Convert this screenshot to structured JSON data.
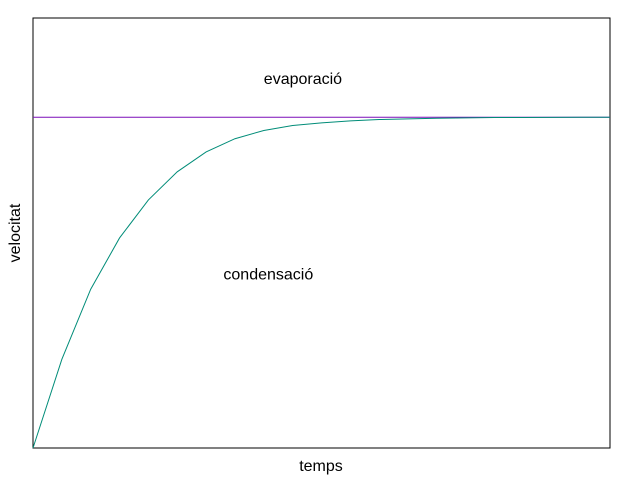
{
  "chart_data": {
    "type": "line",
    "xlabel": "temps",
    "ylabel": "velocitat",
    "xlim": [
      0,
      10
    ],
    "ylim": [
      0,
      1.3
    ],
    "grid": false,
    "series": [
      {
        "name": "evaporació",
        "color": "#7B0FB8",
        "x": [
          0,
          10
        ],
        "y": [
          1.0,
          1.0
        ]
      },
      {
        "name": "condensació",
        "color": "#008C78",
        "x": [
          0,
          0.5,
          1,
          1.5,
          2,
          2.5,
          3,
          3.5,
          4,
          4.5,
          5,
          5.5,
          6,
          6.5,
          7,
          7.5,
          8,
          8.5,
          9,
          9.5,
          10
        ],
        "y": [
          0,
          0.268,
          0.48,
          0.635,
          0.75,
          0.835,
          0.895,
          0.935,
          0.96,
          0.975,
          0.983,
          0.989,
          0.993,
          0.995,
          0.997,
          0.998,
          0.999,
          0.9993,
          0.9996,
          0.9998,
          1.0
        ]
      }
    ],
    "annotations": [
      {
        "text": "evaporació",
        "x": 4.0,
        "y": 1.1
      },
      {
        "text": "condensació",
        "x": 3.3,
        "y": 0.51
      }
    ]
  }
}
